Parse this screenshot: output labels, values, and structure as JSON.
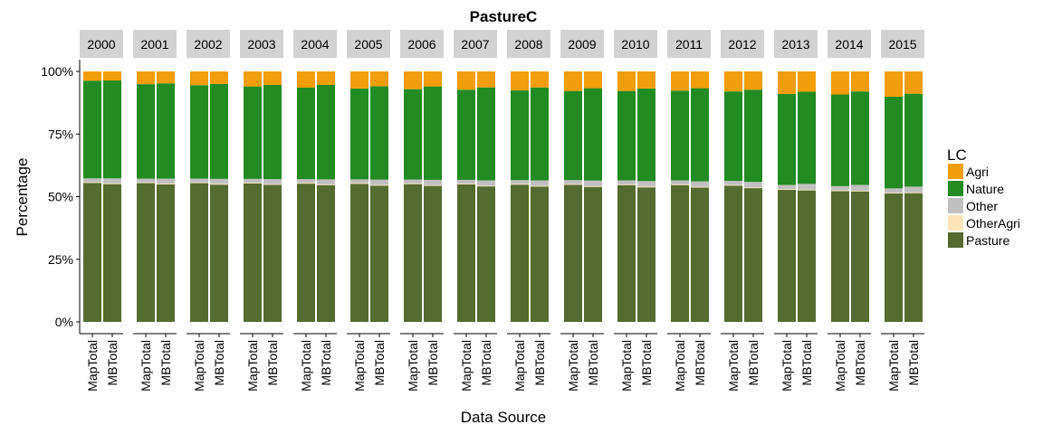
{
  "chart_data": {
    "type": "bar",
    "stacked": true,
    "facet": "year",
    "title": "PastureC",
    "xlabel": "Data Source",
    "ylabel": "Percentage",
    "ylim": [
      0,
      100
    ],
    "y_ticks": [
      "0%",
      "25%",
      "50%",
      "75%",
      "100%"
    ],
    "y_tick_values": [
      0,
      25,
      50,
      75,
      100
    ],
    "categories": [
      "MapTotal",
      "MBTotal"
    ],
    "legend": {
      "title": "LC",
      "position": "right",
      "entries": [
        "Agri",
        "Nature",
        "Other",
        "OtherAgri",
        "Pasture"
      ]
    },
    "colors": {
      "Agri": "#f29d0a",
      "Nature": "#228b22",
      "Other": "#c0c0c0",
      "OtherAgri": "#fce5b8",
      "Pasture": "#556b2f"
    },
    "stack_order_bottom_to_top": [
      "Pasture",
      "OtherAgri",
      "Other",
      "Nature",
      "Agri"
    ],
    "panels": [
      {
        "year": "2000",
        "bars": [
          {
            "source": "MapTotal",
            "Pasture": 55.5,
            "OtherAgri": 0.3,
            "Other": 1.5,
            "Nature": 39.0,
            "Agri": 3.7
          },
          {
            "source": "MBTotal",
            "Pasture": 55.0,
            "OtherAgri": 0.3,
            "Other": 2.0,
            "Nature": 39.1,
            "Agri": 3.6
          }
        ]
      },
      {
        "year": "2001",
        "bars": [
          {
            "source": "MapTotal",
            "Pasture": 55.4,
            "OtherAgri": 0.3,
            "Other": 1.5,
            "Nature": 37.7,
            "Agri": 5.1
          },
          {
            "source": "MBTotal",
            "Pasture": 54.9,
            "OtherAgri": 0.3,
            "Other": 2.0,
            "Nature": 38.0,
            "Agri": 4.8
          }
        ]
      },
      {
        "year": "2002",
        "bars": [
          {
            "source": "MapTotal",
            "Pasture": 55.4,
            "OtherAgri": 0.3,
            "Other": 1.5,
            "Nature": 37.3,
            "Agri": 5.5
          },
          {
            "source": "MBTotal",
            "Pasture": 54.8,
            "OtherAgri": 0.3,
            "Other": 2.0,
            "Nature": 37.9,
            "Agri": 5.0
          }
        ]
      },
      {
        "year": "2003",
        "bars": [
          {
            "source": "MapTotal",
            "Pasture": 55.3,
            "OtherAgri": 0.3,
            "Other": 1.5,
            "Nature": 36.9,
            "Agri": 6.0
          },
          {
            "source": "MBTotal",
            "Pasture": 54.7,
            "OtherAgri": 0.3,
            "Other": 2.0,
            "Nature": 37.6,
            "Agri": 5.4
          }
        ]
      },
      {
        "year": "2004",
        "bars": [
          {
            "source": "MapTotal",
            "Pasture": 55.2,
            "OtherAgri": 0.3,
            "Other": 1.5,
            "Nature": 36.5,
            "Agri": 6.5
          },
          {
            "source": "MBTotal",
            "Pasture": 54.6,
            "OtherAgri": 0.3,
            "Other": 2.0,
            "Nature": 37.7,
            "Agri": 5.4
          }
        ]
      },
      {
        "year": "2005",
        "bars": [
          {
            "source": "MapTotal",
            "Pasture": 55.1,
            "OtherAgri": 0.3,
            "Other": 1.5,
            "Nature": 36.3,
            "Agri": 6.8
          },
          {
            "source": "MBTotal",
            "Pasture": 54.4,
            "OtherAgri": 0.3,
            "Other": 2.1,
            "Nature": 37.3,
            "Agri": 5.9
          }
        ]
      },
      {
        "year": "2006",
        "bars": [
          {
            "source": "MapTotal",
            "Pasture": 55.0,
            "OtherAgri": 0.3,
            "Other": 1.5,
            "Nature": 36.1,
            "Agri": 7.1
          },
          {
            "source": "MBTotal",
            "Pasture": 54.3,
            "OtherAgri": 0.3,
            "Other": 2.1,
            "Nature": 37.3,
            "Agri": 6.0
          }
        ]
      },
      {
        "year": "2007",
        "bars": [
          {
            "source": "MapTotal",
            "Pasture": 54.9,
            "OtherAgri": 0.3,
            "Other": 1.5,
            "Nature": 36.0,
            "Agri": 7.3
          },
          {
            "source": "MBTotal",
            "Pasture": 54.1,
            "OtherAgri": 0.3,
            "Other": 2.1,
            "Nature": 37.1,
            "Agri": 6.4
          }
        ]
      },
      {
        "year": "2008",
        "bars": [
          {
            "source": "MapTotal",
            "Pasture": 54.8,
            "OtherAgri": 0.3,
            "Other": 1.5,
            "Nature": 35.8,
            "Agri": 7.6
          },
          {
            "source": "MBTotal",
            "Pasture": 54.0,
            "OtherAgri": 0.3,
            "Other": 2.2,
            "Nature": 37.1,
            "Agri": 6.4
          }
        ]
      },
      {
        "year": "2009",
        "bars": [
          {
            "source": "MapTotal",
            "Pasture": 54.7,
            "OtherAgri": 0.3,
            "Other": 1.6,
            "Nature": 35.6,
            "Agri": 7.8
          },
          {
            "source": "MBTotal",
            "Pasture": 53.9,
            "OtherAgri": 0.3,
            "Other": 2.2,
            "Nature": 36.9,
            "Agri": 6.7
          }
        ]
      },
      {
        "year": "2010",
        "bars": [
          {
            "source": "MapTotal",
            "Pasture": 54.6,
            "OtherAgri": 0.3,
            "Other": 1.6,
            "Nature": 35.7,
            "Agri": 7.8
          },
          {
            "source": "MBTotal",
            "Pasture": 53.7,
            "OtherAgri": 0.3,
            "Other": 2.2,
            "Nature": 37.0,
            "Agri": 6.8
          }
        ]
      },
      {
        "year": "2011",
        "bars": [
          {
            "source": "MapTotal",
            "Pasture": 54.6,
            "OtherAgri": 0.3,
            "Other": 1.6,
            "Nature": 35.8,
            "Agri": 7.7
          },
          {
            "source": "MBTotal",
            "Pasture": 53.6,
            "OtherAgri": 0.3,
            "Other": 2.2,
            "Nature": 37.2,
            "Agri": 6.7
          }
        ]
      },
      {
        "year": "2012",
        "bars": [
          {
            "source": "MapTotal",
            "Pasture": 54.4,
            "OtherAgri": 0.3,
            "Other": 1.6,
            "Nature": 35.7,
            "Agri": 8.0
          },
          {
            "source": "MBTotal",
            "Pasture": 53.4,
            "OtherAgri": 0.3,
            "Other": 2.2,
            "Nature": 36.8,
            "Agri": 7.3
          }
        ]
      },
      {
        "year": "2013",
        "bars": [
          {
            "source": "MapTotal",
            "Pasture": 52.7,
            "OtherAgri": 0.3,
            "Other": 1.7,
            "Nature": 36.3,
            "Agri": 9.0
          },
          {
            "source": "MBTotal",
            "Pasture": 52.5,
            "OtherAgri": 0.3,
            "Other": 2.3,
            "Nature": 36.8,
            "Agri": 8.1
          }
        ]
      },
      {
        "year": "2014",
        "bars": [
          {
            "source": "MapTotal",
            "Pasture": 52.2,
            "OtherAgri": 0.3,
            "Other": 1.7,
            "Nature": 36.6,
            "Agri": 9.2
          },
          {
            "source": "MBTotal",
            "Pasture": 52.1,
            "OtherAgri": 0.3,
            "Other": 2.3,
            "Nature": 37.3,
            "Agri": 8.0
          }
        ]
      },
      {
        "year": "2015",
        "bars": [
          {
            "source": "MapTotal",
            "Pasture": 51.3,
            "OtherAgri": 0.3,
            "Other": 1.7,
            "Nature": 36.6,
            "Agri": 10.1
          },
          {
            "source": "MBTotal",
            "Pasture": 51.4,
            "OtherAgri": 0.3,
            "Other": 2.3,
            "Nature": 37.1,
            "Agri": 8.9
          }
        ]
      }
    ]
  }
}
